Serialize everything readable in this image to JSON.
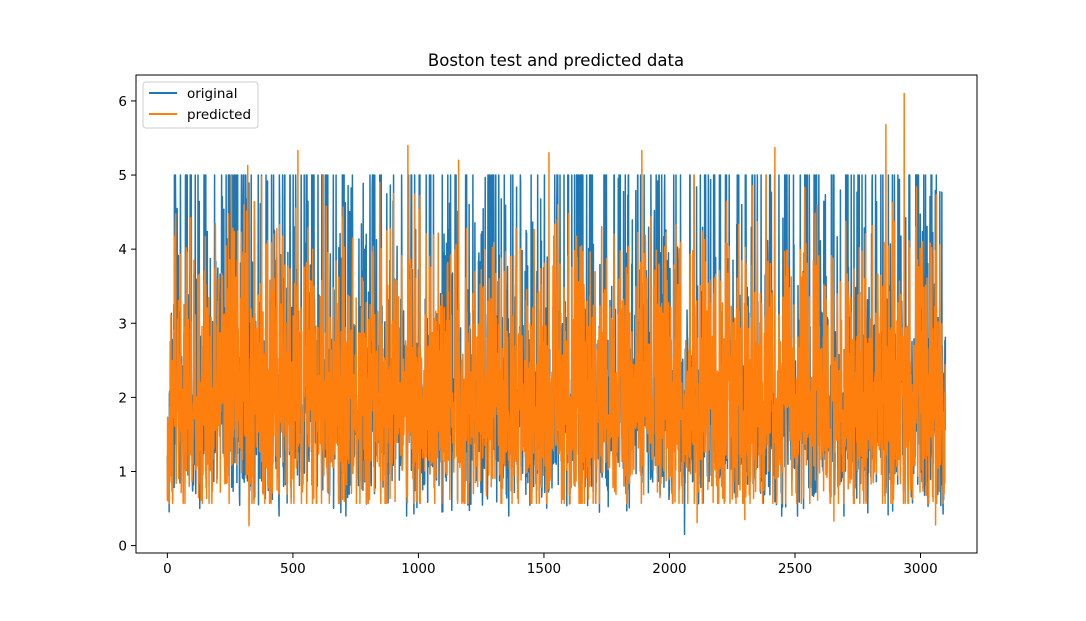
{
  "chart_data": {
    "type": "line",
    "title": "Boston test and predicted data",
    "xlabel": "",
    "ylabel": "",
    "xlim": [
      -125,
      3225
    ],
    "ylim": [
      -0.1,
      6.35
    ],
    "x_ticks": [
      0,
      500,
      1000,
      1500,
      2000,
      2500,
      3000
    ],
    "y_ticks": [
      0,
      1,
      2,
      3,
      4,
      5,
      6
    ],
    "n_points": 3100,
    "grid": false,
    "legend_position": "top-left",
    "series": [
      {
        "name": "original",
        "color": "#1f77b4",
        "baseline": 1.8,
        "range": [
          0.15,
          5.0
        ],
        "cap_value": 5.0,
        "note_min": {
          "x": 2060,
          "y": 0.15
        }
      },
      {
        "name": "predicted",
        "color": "#ff7f0e",
        "baseline": 1.8,
        "range": [
          0.27,
          6.1
        ],
        "peaks": [
          {
            "x": 2935,
            "y": 6.1
          },
          {
            "x": 2862,
            "y": 5.68
          },
          {
            "x": 958,
            "y": 5.4
          },
          {
            "x": 520,
            "y": 5.33
          },
          {
            "x": 2420,
            "y": 5.37
          },
          {
            "x": 1890,
            "y": 5.33
          },
          {
            "x": 320,
            "y": 5.13
          },
          {
            "x": 1160,
            "y": 5.2
          },
          {
            "x": 1520,
            "y": 5.3
          }
        ],
        "troughs": [
          {
            "x": 325,
            "y": 0.27
          },
          {
            "x": 3060,
            "y": 0.28
          },
          {
            "x": 2110,
            "y": 0.31
          },
          {
            "x": 2300,
            "y": 0.35
          },
          {
            "x": 2655,
            "y": 0.33
          }
        ]
      }
    ]
  }
}
